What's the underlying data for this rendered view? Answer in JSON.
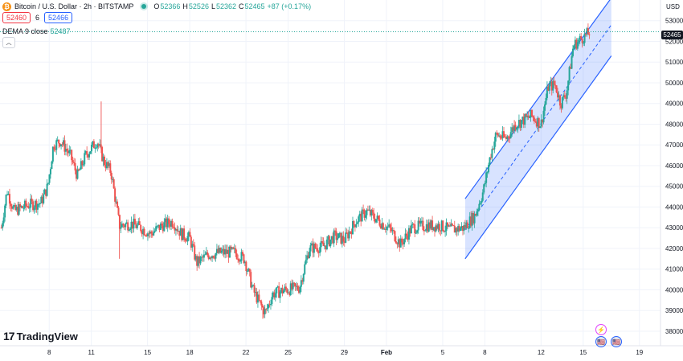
{
  "header": {
    "symbol": "Bitcoin / U.S. Dollar · 2h · BITSTAMP",
    "logo_glyph": "₿",
    "ohlc": {
      "o_label": "O",
      "o": "52366",
      "h_label": "H",
      "h": "52526",
      "l_label": "L",
      "l": "52362",
      "c_label": "C",
      "c": "52465",
      "change": "+87 (+0.17%)"
    },
    "bid": "52460",
    "spread": "6",
    "ask": "52466",
    "indicator": {
      "label": "DEMA 9 close",
      "value": "52487"
    }
  },
  "branding": {
    "name": "TradingView",
    "mark": "17"
  },
  "price_axis": {
    "currency": "USD",
    "last_price_tag": "52465"
  },
  "colors": {
    "up": "#26a69a",
    "down": "#ef5350",
    "channel_line": "#2962ff",
    "channel_fill": "#2962ff",
    "grid": "#f0f3fa"
  },
  "icons": {
    "lightning": "⚡",
    "flag": "🇺🇸"
  },
  "chart_data": {
    "type": "candlestick",
    "symbol": "Bitcoin / U.S. Dollar",
    "interval": "2h",
    "exchange": "BITSTAMP",
    "x_ticks": [
      {
        "label": "8",
        "day": 8
      },
      {
        "label": "11",
        "day": 11
      },
      {
        "label": "15",
        "day": 15
      },
      {
        "label": "18",
        "day": 18
      },
      {
        "label": "22",
        "day": 22
      },
      {
        "label": "25",
        "day": 25
      },
      {
        "label": "29",
        "day": 29
      },
      {
        "label": "Feb",
        "day": 32
      },
      {
        "label": "5",
        "day": 36
      },
      {
        "label": "8",
        "day": 39
      },
      {
        "label": "12",
        "day": 43
      },
      {
        "label": "15",
        "day": 46
      },
      {
        "label": "19",
        "day": 50
      }
    ],
    "y_ticks": [
      38000,
      39000,
      40000,
      41000,
      42000,
      43000,
      44000,
      45000,
      46000,
      47000,
      48000,
      49000,
      50000,
      51000,
      52000,
      53000
    ],
    "y_tick_labels": [
      "38000",
      "39000",
      "40000",
      "41000",
      "42000",
      "43000",
      "44000",
      "45000",
      "46000",
      "47000",
      "48000",
      "49000",
      "50000",
      "51000",
      "52000",
      "53000"
    ],
    "ylim": [
      37300,
      54000
    ],
    "xlim": [
      4.5,
      51.5
    ],
    "approx_close_path": [
      {
        "day": 4.6,
        "price": 43000
      },
      {
        "day": 5.0,
        "price": 44800
      },
      {
        "day": 5.5,
        "price": 43800
      },
      {
        "day": 6.5,
        "price": 44100
      },
      {
        "day": 7.4,
        "price": 44200
      },
      {
        "day": 7.9,
        "price": 45000
      },
      {
        "day": 8.3,
        "price": 47000
      },
      {
        "day": 8.8,
        "price": 47200
      },
      {
        "day": 9.5,
        "price": 46500
      },
      {
        "day": 10.0,
        "price": 45500
      },
      {
        "day": 10.6,
        "price": 46500
      },
      {
        "day": 11.4,
        "price": 47200
      },
      {
        "day": 11.9,
        "price": 46200
      },
      {
        "day": 12.4,
        "price": 45700
      },
      {
        "day": 13.0,
        "price": 43100
      },
      {
        "day": 13.8,
        "price": 43200
      },
      {
        "day": 14.5,
        "price": 43000
      },
      {
        "day": 15.2,
        "price": 42700
      },
      {
        "day": 16.0,
        "price": 43100
      },
      {
        "day": 16.8,
        "price": 43300
      },
      {
        "day": 17.4,
        "price": 42700
      },
      {
        "day": 18.0,
        "price": 42500
      },
      {
        "day": 18.5,
        "price": 41300
      },
      {
        "day": 19.3,
        "price": 41700
      },
      {
        "day": 20.2,
        "price": 41800
      },
      {
        "day": 21.2,
        "price": 41800
      },
      {
        "day": 21.9,
        "price": 41500
      },
      {
        "day": 22.5,
        "price": 40000
      },
      {
        "day": 23.0,
        "price": 39300
      },
      {
        "day": 23.4,
        "price": 38900
      },
      {
        "day": 23.9,
        "price": 39800
      },
      {
        "day": 24.8,
        "price": 40000
      },
      {
        "day": 25.8,
        "price": 40100
      },
      {
        "day": 26.5,
        "price": 42000
      },
      {
        "day": 27.5,
        "price": 42100
      },
      {
        "day": 28.3,
        "price": 42600
      },
      {
        "day": 29.0,
        "price": 42400
      },
      {
        "day": 29.8,
        "price": 43300
      },
      {
        "day": 30.6,
        "price": 43800
      },
      {
        "day": 31.5,
        "price": 43300
      },
      {
        "day": 32.3,
        "price": 42900
      },
      {
        "day": 33.0,
        "price": 42200
      },
      {
        "day": 33.8,
        "price": 43000
      },
      {
        "day": 34.8,
        "price": 43100
      },
      {
        "day": 35.8,
        "price": 43100
      },
      {
        "day": 36.5,
        "price": 42900
      },
      {
        "day": 37.5,
        "price": 43000
      },
      {
        "day": 38.3,
        "price": 43600
      },
      {
        "day": 38.9,
        "price": 44800
      },
      {
        "day": 39.4,
        "price": 46500
      },
      {
        "day": 39.8,
        "price": 47500
      },
      {
        "day": 40.5,
        "price": 47300
      },
      {
        "day": 41.2,
        "price": 48000
      },
      {
        "day": 42.3,
        "price": 48400
      },
      {
        "day": 43.0,
        "price": 48000
      },
      {
        "day": 43.5,
        "price": 49800
      },
      {
        "day": 44.0,
        "price": 49900
      },
      {
        "day": 44.4,
        "price": 49000
      },
      {
        "day": 44.8,
        "price": 49500
      },
      {
        "day": 45.3,
        "price": 51800
      },
      {
        "day": 45.8,
        "price": 52100
      },
      {
        "day": 46.2,
        "price": 52300
      },
      {
        "day": 46.5,
        "price": 52465
      }
    ],
    "spikes": [
      {
        "day": 11.7,
        "high": 49100
      },
      {
        "day": 13.0,
        "low": 41500
      },
      {
        "day": 23.2,
        "low": 38600
      },
      {
        "day": 41.1,
        "high": 48200
      }
    ],
    "regression_channel": {
      "x_start": 37.6,
      "x_end": 48.0,
      "upper": [
        44400,
        54100
      ],
      "mid": [
        42900,
        52800
      ],
      "lower": [
        41500,
        51300
      ]
    },
    "last_price_line": 52465
  }
}
